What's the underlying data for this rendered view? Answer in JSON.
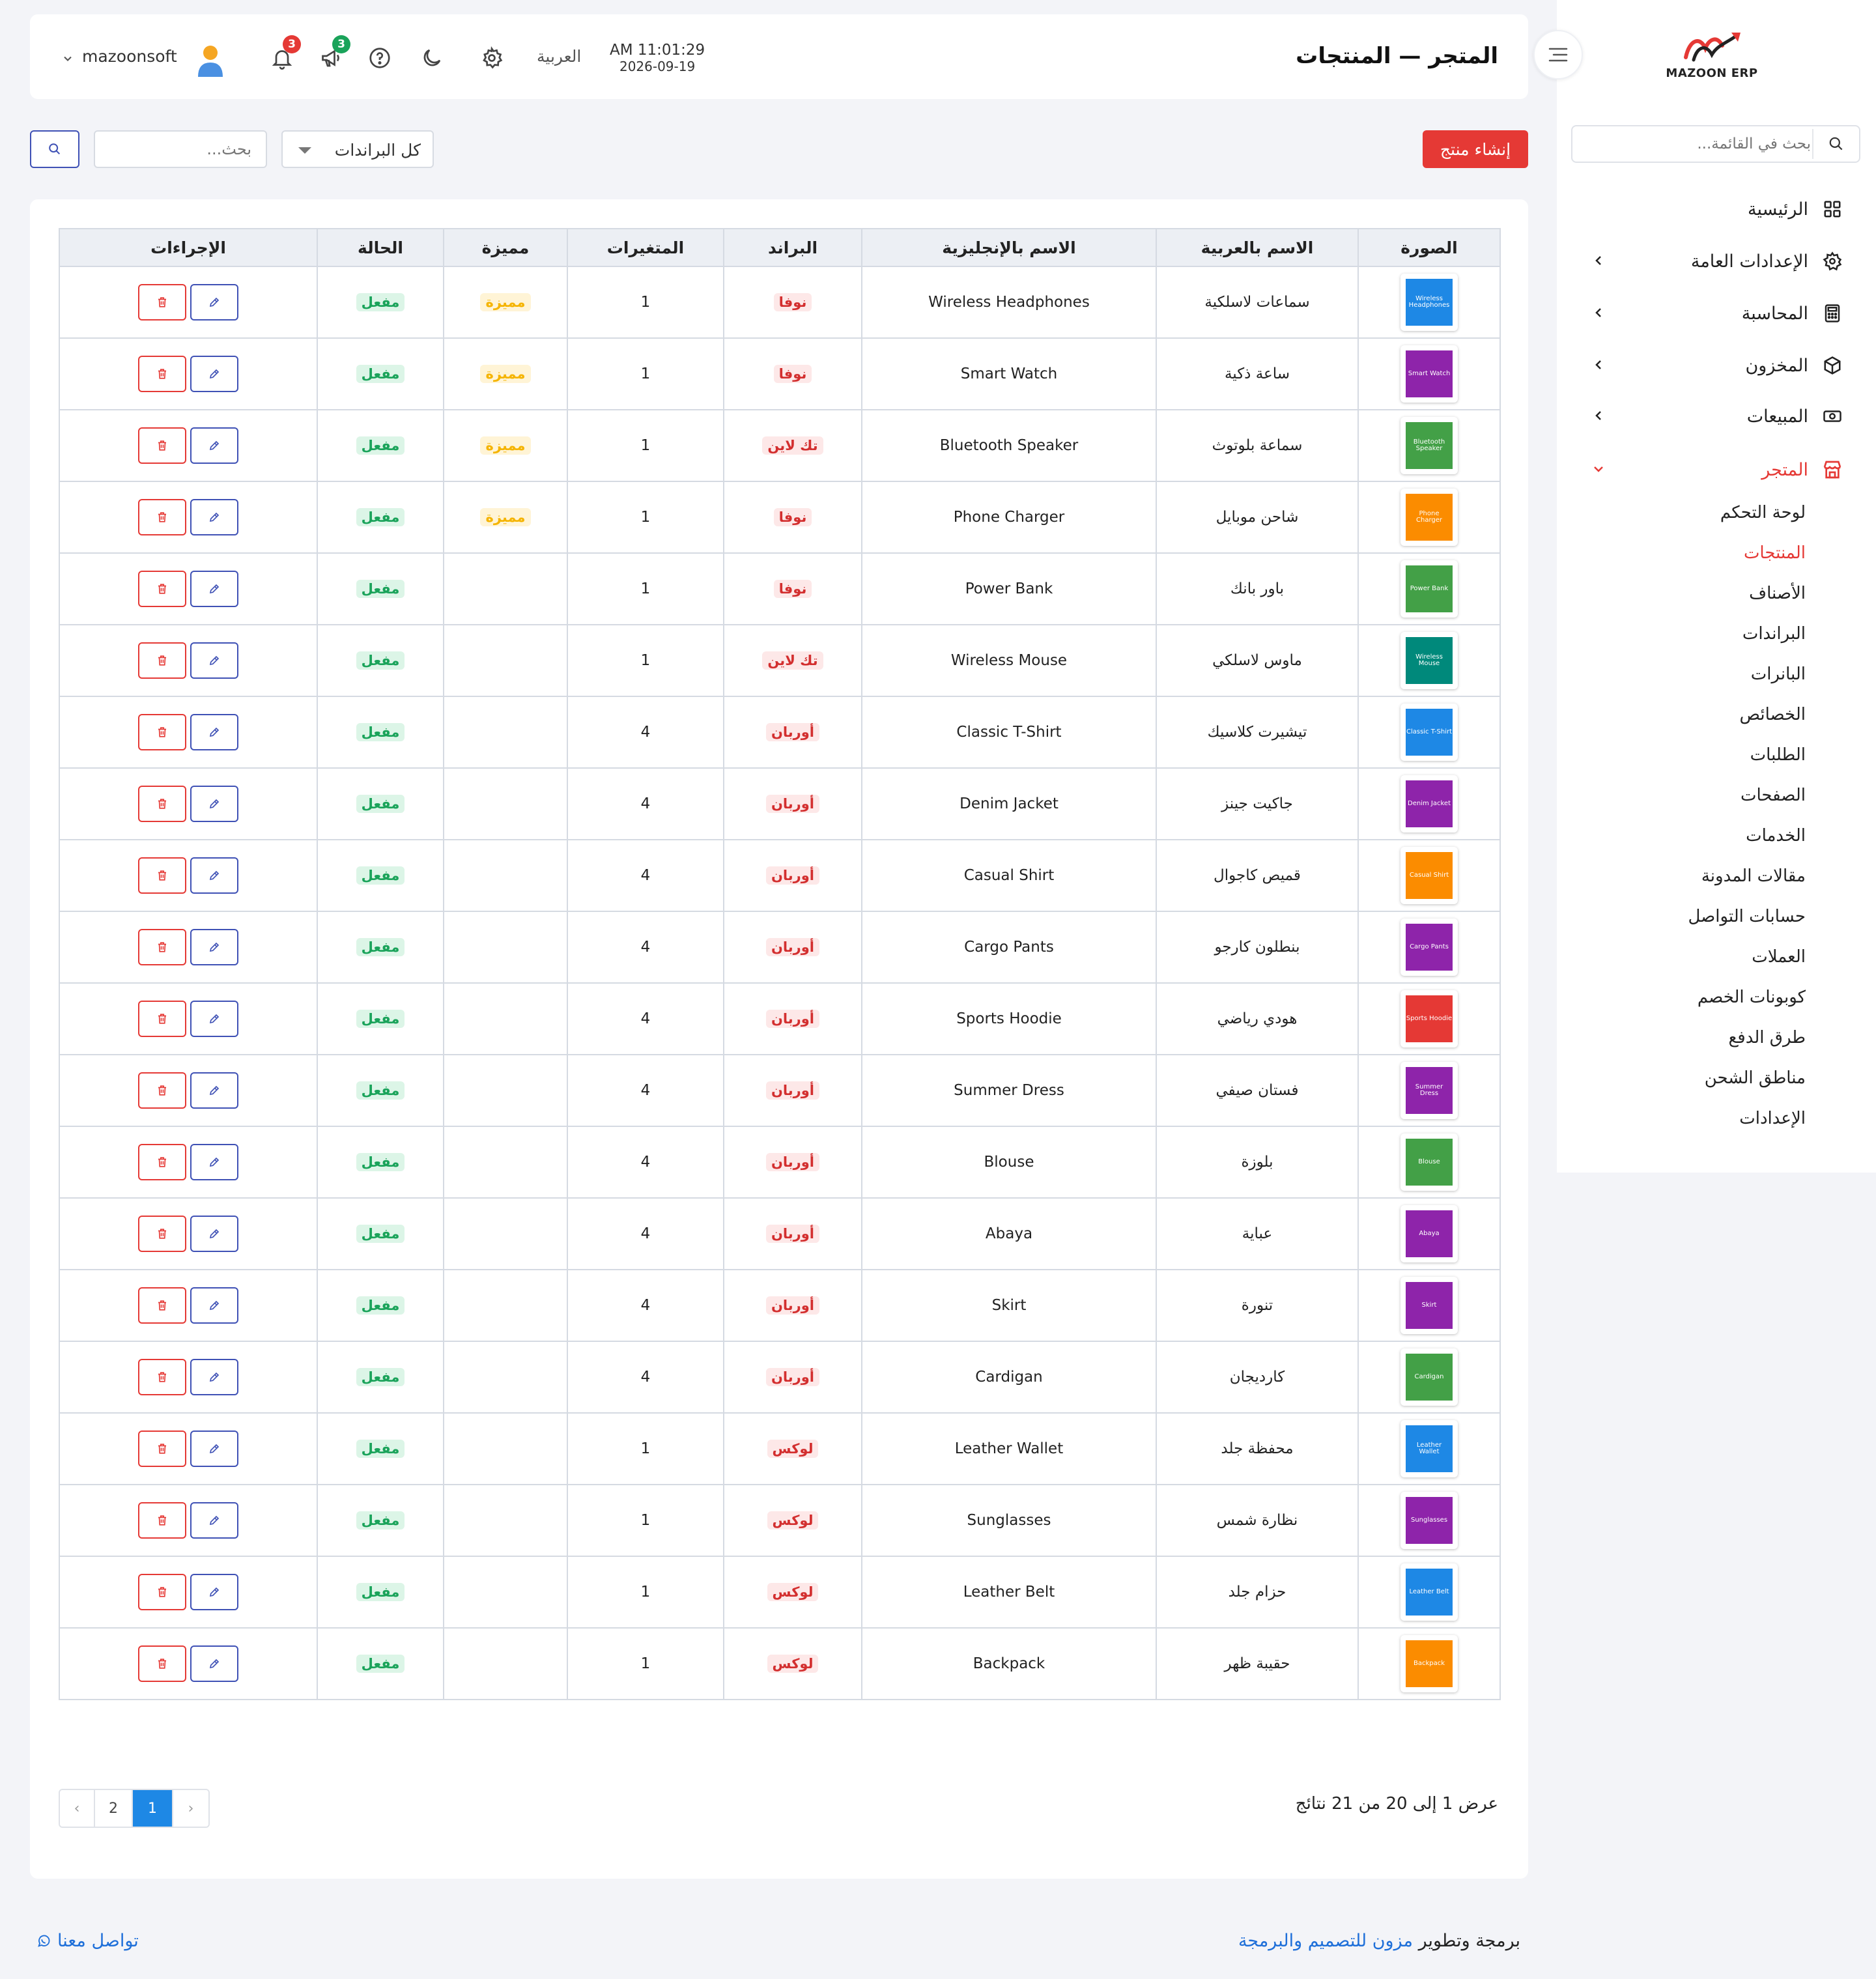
{
  "app": {
    "brand_name": "MAZOON ERP",
    "brand_arabic": "مزون"
  },
  "sidebar": {
    "search_placeholder": "بحث في القائمة...",
    "items": [
      {
        "label": "الرئيسية",
        "icon": "grid-icon"
      },
      {
        "label": "الإعدادات العامة",
        "icon": "gear-icon"
      },
      {
        "label": "المحاسبة",
        "icon": "calculator-icon"
      },
      {
        "label": "المخزون",
        "icon": "box-icon"
      },
      {
        "label": "المبيعات",
        "icon": "cash-icon"
      },
      {
        "label": "المتجر",
        "icon": "store-icon"
      }
    ],
    "store_sub": [
      "لوحة التحكم",
      "المنتجات",
      "الأصناف",
      "البراندات",
      "البانرات",
      "الخصائص",
      "الطلبات",
      "الصفحات",
      "الخدمات",
      "مقالات المدونة",
      "حسابات التواصل",
      "العملات",
      "كوبونات الخصم",
      "طرق الدفع",
      "مناطق الشحن",
      "الإعدادات"
    ]
  },
  "header": {
    "title": "المتجر — المنتجات",
    "time": "AM 11:01:29",
    "date": "2026-09-19",
    "language": "العربية",
    "notifications_count": "3",
    "announcements_count": "3",
    "username": "mazoonsoft"
  },
  "toolbar": {
    "create_label": "إنشاء منتج",
    "brand_filter": "كل البراندات",
    "search_placeholder": "بحث..."
  },
  "table": {
    "headers": [
      "الصورة",
      "الاسم بالعربية",
      "الاسم بالإنجليزية",
      "البراند",
      "المتغيرات",
      "مميزة",
      "الحالة",
      "الإجراءات"
    ],
    "rows": [
      {
        "thumb_text": "Wireless Headphones",
        "thumb_color": "#1e88e5",
        "ar": "سماعات لاسلكية",
        "en": "Wireless Headphones",
        "brand": "نوفا",
        "variants": "1",
        "featured": "مميزة",
        "status": "مفعل"
      },
      {
        "thumb_text": "Smart Watch",
        "thumb_color": "#8e24aa",
        "ar": "ساعة ذكية",
        "en": "Smart Watch",
        "brand": "نوفا",
        "variants": "1",
        "featured": "مميزة",
        "status": "مفعل"
      },
      {
        "thumb_text": "Bluetooth Speaker",
        "thumb_color": "#43a047",
        "ar": "سماعة بلوتوث",
        "en": "Bluetooth Speaker",
        "brand": "تك لاين",
        "variants": "1",
        "featured": "مميزة",
        "status": "مفعل"
      },
      {
        "thumb_text": "Phone Charger",
        "thumb_color": "#fb8c00",
        "ar": "شاحن موبايل",
        "en": "Phone Charger",
        "brand": "نوفا",
        "variants": "1",
        "featured": "مميزة",
        "status": "مفعل"
      },
      {
        "thumb_text": "Power Bank",
        "thumb_color": "#43a047",
        "ar": "باور بانك",
        "en": "Power Bank",
        "brand": "نوفا",
        "variants": "1",
        "featured": "",
        "status": "مفعل"
      },
      {
        "thumb_text": "Wireless Mouse",
        "thumb_color": "#00897b",
        "ar": "ماوس لاسلكي",
        "en": "Wireless Mouse",
        "brand": "تك لاين",
        "variants": "1",
        "featured": "",
        "status": "مفعل"
      },
      {
        "thumb_text": "Classic T-Shirt",
        "thumb_color": "#1e88e5",
        "ar": "تيشيرت كلاسيك",
        "en": "Classic T-Shirt",
        "brand": "أوربان",
        "variants": "4",
        "featured": "",
        "status": "مفعل"
      },
      {
        "thumb_text": "Denim Jacket",
        "thumb_color": "#8e24aa",
        "ar": "جاكيت جينز",
        "en": "Denim Jacket",
        "brand": "أوربان",
        "variants": "4",
        "featured": "",
        "status": "مفعل"
      },
      {
        "thumb_text": "Casual Shirt",
        "thumb_color": "#fb8c00",
        "ar": "قميص كاجوال",
        "en": "Casual Shirt",
        "brand": "أوربان",
        "variants": "4",
        "featured": "",
        "status": "مفعل"
      },
      {
        "thumb_text": "Cargo Pants",
        "thumb_color": "#8e24aa",
        "ar": "بنطلون كارجو",
        "en": "Cargo Pants",
        "brand": "أوربان",
        "variants": "4",
        "featured": "",
        "status": "مفعل"
      },
      {
        "thumb_text": "Sports Hoodie",
        "thumb_color": "#e53935",
        "ar": "هودي رياضي",
        "en": "Sports Hoodie",
        "brand": "أوربان",
        "variants": "4",
        "featured": "",
        "status": "مفعل"
      },
      {
        "thumb_text": "Summer Dress",
        "thumb_color": "#8e24aa",
        "ar": "فستان صيفي",
        "en": "Summer Dress",
        "brand": "أوربان",
        "variants": "4",
        "featured": "",
        "status": "مفعل"
      },
      {
        "thumb_text": "Blouse",
        "thumb_color": "#43a047",
        "ar": "بلوزة",
        "en": "Blouse",
        "brand": "أوربان",
        "variants": "4",
        "featured": "",
        "status": "مفعل"
      },
      {
        "thumb_text": "Abaya",
        "thumb_color": "#8e24aa",
        "ar": "عباية",
        "en": "Abaya",
        "brand": "أوربان",
        "variants": "4",
        "featured": "",
        "status": "مفعل"
      },
      {
        "thumb_text": "Skirt",
        "thumb_color": "#8e24aa",
        "ar": "تنورة",
        "en": "Skirt",
        "brand": "أوربان",
        "variants": "4",
        "featured": "",
        "status": "مفعل"
      },
      {
        "thumb_text": "Cardigan",
        "thumb_color": "#43a047",
        "ar": "كارديجان",
        "en": "Cardigan",
        "brand": "أوربان",
        "variants": "4",
        "featured": "",
        "status": "مفعل"
      },
      {
        "thumb_text": "Leather Wallet",
        "thumb_color": "#1e88e5",
        "ar": "محفظة جلد",
        "en": "Leather Wallet",
        "brand": "لوكس",
        "variants": "1",
        "featured": "",
        "status": "مفعل"
      },
      {
        "thumb_text": "Sunglasses",
        "thumb_color": "#8e24aa",
        "ar": "نظارة شمس",
        "en": "Sunglasses",
        "brand": "لوكس",
        "variants": "1",
        "featured": "",
        "status": "مفعل"
      },
      {
        "thumb_text": "Leather Belt",
        "thumb_color": "#1e88e5",
        "ar": "حزام جلد",
        "en": "Leather Belt",
        "brand": "لوكس",
        "variants": "1",
        "featured": "",
        "status": "مفعل"
      },
      {
        "thumb_text": "Backpack",
        "thumb_color": "#fb8c00",
        "ar": "حقيبة ظهر",
        "en": "Backpack",
        "brand": "لوكس",
        "variants": "1",
        "featured": "",
        "status": "مفعل"
      }
    ]
  },
  "pagination": {
    "summary": "عرض 1 إلى 20 من 21 نتائج",
    "pages": [
      "1",
      "2"
    ],
    "current": "1",
    "prev": "‹",
    "next": "›"
  },
  "footer": {
    "credit_prefix": "برمجة وتطوير",
    "credit_link": "مزون للتصميم والبرمجة",
    "contact": "تواصل معنا"
  },
  "colors": {
    "accent_red": "#e53935",
    "accent_blue": "#1e88e5",
    "indigo": "#3f51b5",
    "status_green": "#1aa35a",
    "featured_yellow": "#f5b400"
  }
}
